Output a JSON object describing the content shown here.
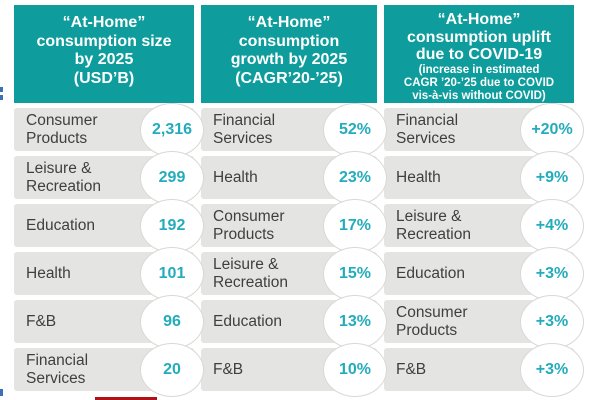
{
  "columns": [
    {
      "header": {
        "lines": [
          "“At-Home”",
          "consumption size",
          "by 2025",
          "(USD’B)"
        ]
      },
      "rows": [
        {
          "label": "Consumer Products",
          "value": "2,316"
        },
        {
          "label": "Leisure & Recreation",
          "value": "299"
        },
        {
          "label": "Education",
          "value": "192"
        },
        {
          "label": "Health",
          "value": "101"
        },
        {
          "label": "F&B",
          "value": "96"
        },
        {
          "label": "Financial Services",
          "value": "20"
        }
      ]
    },
    {
      "header": {
        "lines": [
          "“At-Home”",
          "consumption",
          "growth by 2025",
          "(CAGR’20-’25)"
        ]
      },
      "rows": [
        {
          "label": "Financial Services",
          "value": "52%"
        },
        {
          "label": "Health",
          "value": "23%"
        },
        {
          "label": "Consumer Products",
          "value": "17%"
        },
        {
          "label": "Leisure & Recreation",
          "value": "15%"
        },
        {
          "label": "Education",
          "value": "13%"
        },
        {
          "label": "F&B",
          "value": "10%"
        }
      ]
    },
    {
      "header": {
        "lines": [
          "“At-Home”",
          "consumption uplift",
          "due to COVID-19"
        ],
        "subtitle_lines": [
          "(increase in estimated",
          "CAGR ’20-’25 due to COVID",
          "vis-à-vis without COVID)"
        ]
      },
      "rows": [
        {
          "label": "Financial Services",
          "value": "+20%"
        },
        {
          "label": "Health",
          "value": "+9%"
        },
        {
          "label": "Leisure & Recreation",
          "value": "+4%"
        },
        {
          "label": "Education",
          "value": "+3%"
        },
        {
          "label": "Consumer Products",
          "value": "+3%"
        },
        {
          "label": "F&B",
          "value": "+3%"
        }
      ]
    }
  ],
  "colors": {
    "header_bg": "#0e9c9c",
    "header_text": "#ffffff",
    "row_bg": "#e4e4e2",
    "label_text": "#3f3f3f",
    "value_text": "#23acbc",
    "badge_bg": "#ffffff",
    "badge_border": "#d8d8d5",
    "left_edge_fragment_blue": "#3b71b8",
    "bottom_line_red": "#b01116"
  },
  "chart_data": {
    "type": "table",
    "tables": [
      {
        "title": "“At-Home” consumption size by 2025 (USD’B)",
        "categories": [
          "Consumer Products",
          "Leisure & Recreation",
          "Education",
          "Health",
          "F&B",
          "Financial Services"
        ],
        "values": [
          2316,
          299,
          192,
          101,
          96,
          20
        ],
        "unit": "USD’B"
      },
      {
        "title": "“At-Home” consumption growth by 2025 (CAGR’20-’25)",
        "categories": [
          "Financial Services",
          "Health",
          "Consumer Products",
          "Leisure & Recreation",
          "Education",
          "F&B"
        ],
        "values": [
          52,
          23,
          17,
          15,
          13,
          10
        ],
        "unit": "%"
      },
      {
        "title": "“At-Home” consumption uplift due to COVID-19 (increase in estimated CAGR ’20-’25 due to COVID vis-à-vis without COVID)",
        "categories": [
          "Financial Services",
          "Health",
          "Leisure & Recreation",
          "Education",
          "Consumer Products",
          "F&B"
        ],
        "values": [
          20,
          9,
          4,
          3,
          3,
          3
        ],
        "unit": "+%"
      }
    ]
  }
}
